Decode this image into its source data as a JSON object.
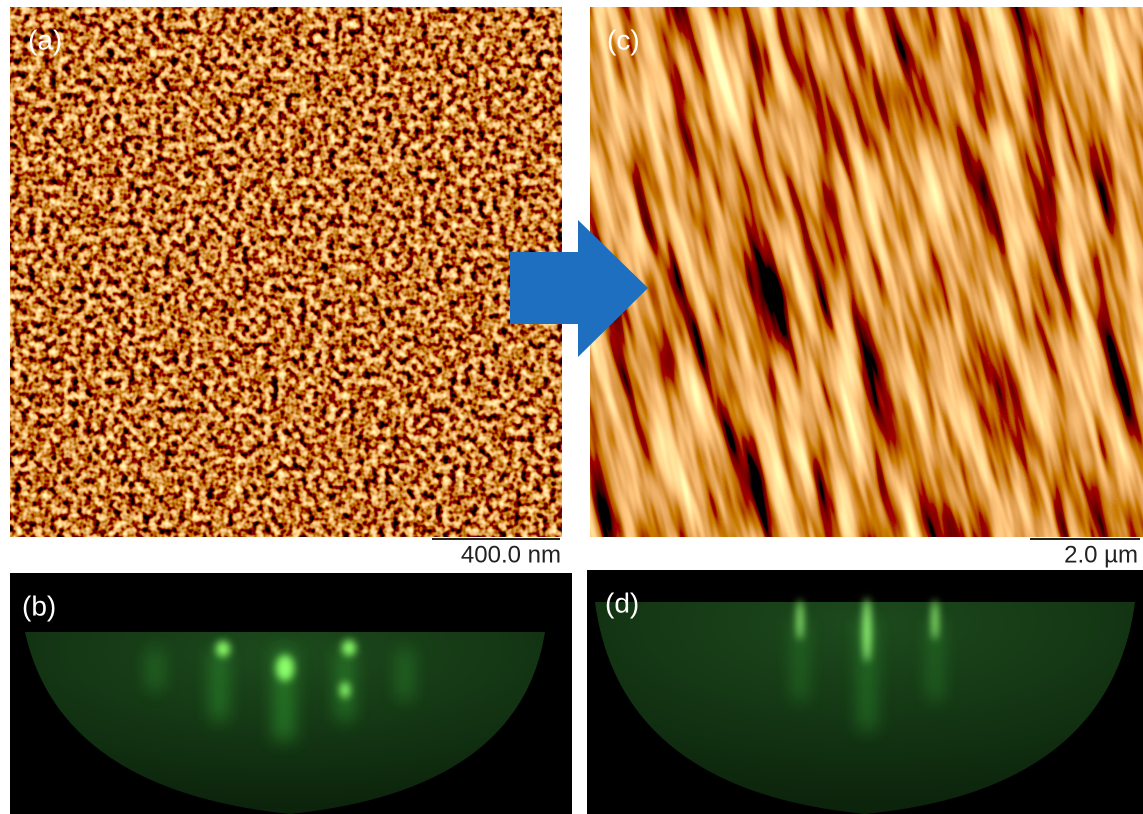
{
  "panels": [
    {
      "label": "(a)",
      "scale_bar": "400.0 nm"
    },
    {
      "label": "(b)"
    },
    {
      "label": "(c)",
      "scale_bar": "2.0 µm"
    },
    {
      "label": "(d)"
    }
  ]
}
